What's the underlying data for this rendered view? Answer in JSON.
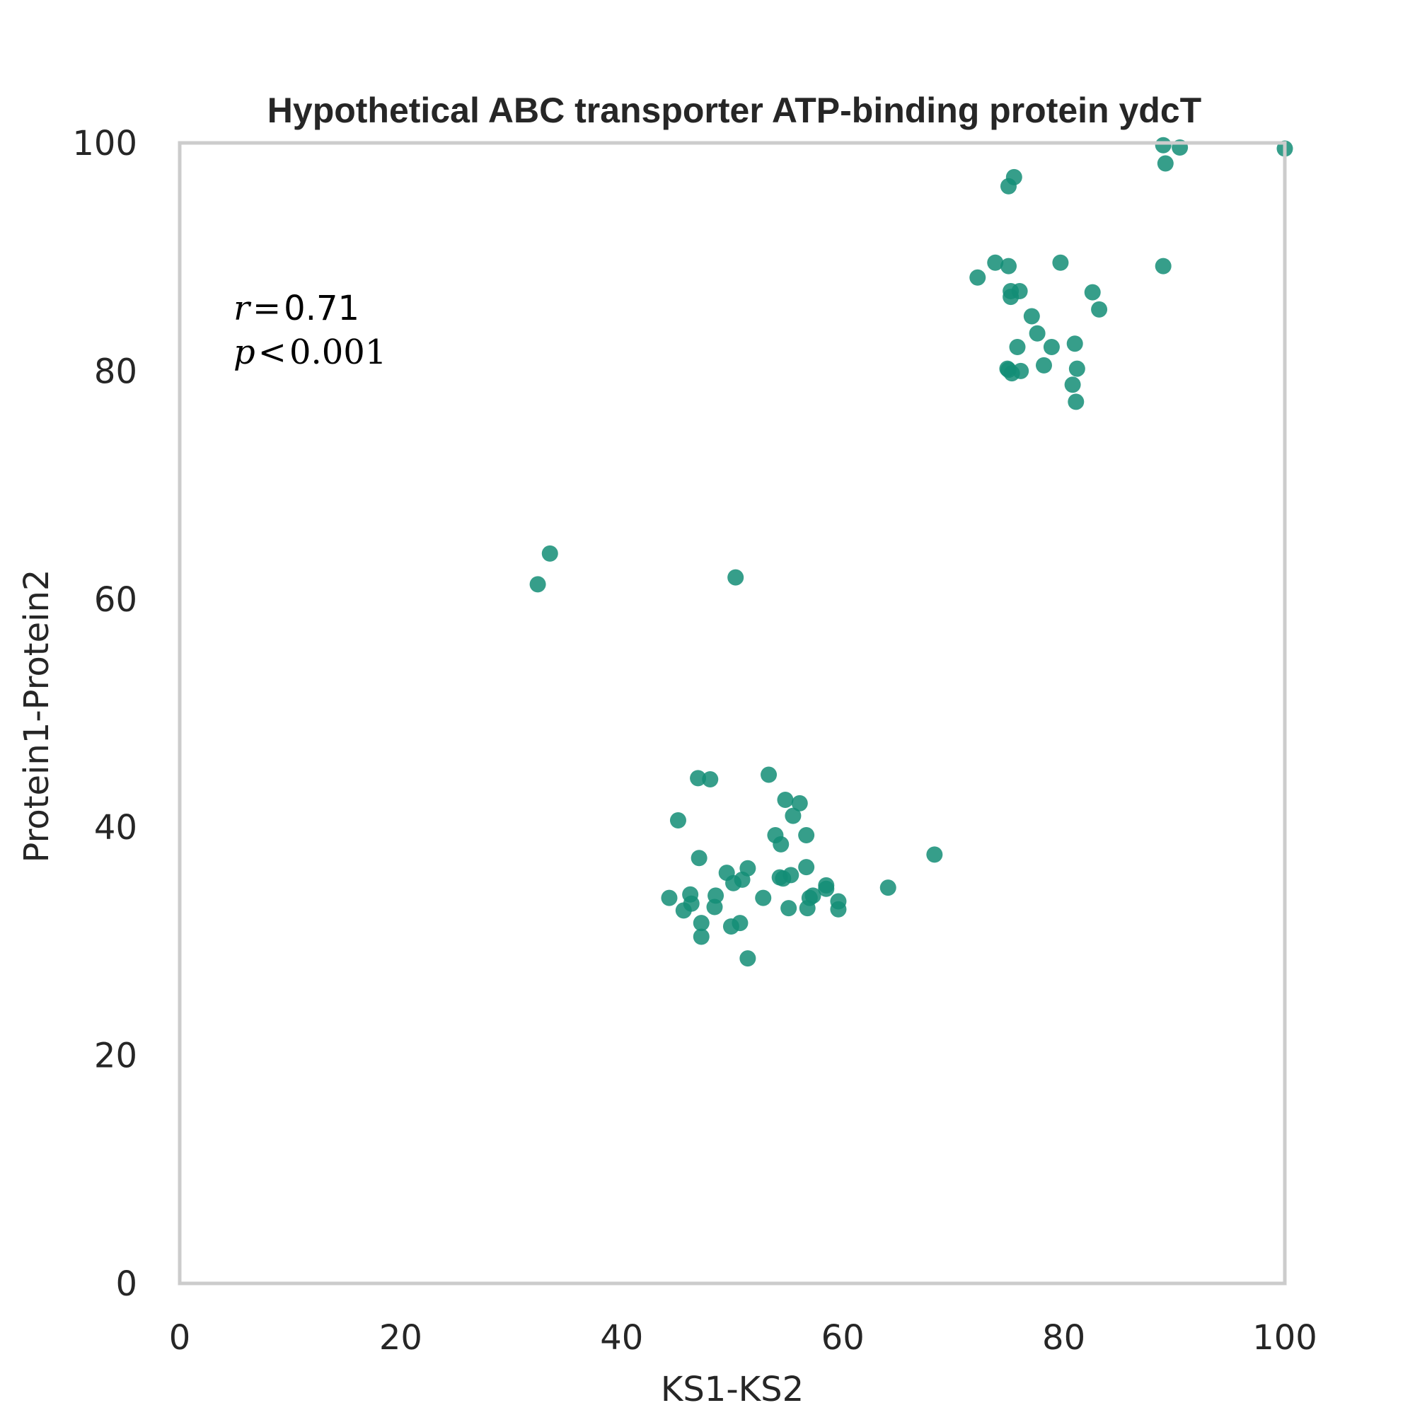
{
  "chart_data": {
    "type": "scatter",
    "title": "Hypothetical ABC transporter ATP-binding protein ydcT",
    "xlabel": "KS1-KS2",
    "ylabel": "Protein1-Protein2",
    "xlim": [
      0,
      100
    ],
    "ylim": [
      0,
      100
    ],
    "xticks": [
      "0",
      "20",
      "40",
      "60",
      "80",
      "100"
    ],
    "yticks": [
      "0",
      "20",
      "40",
      "60",
      "80",
      "100"
    ],
    "grid": false,
    "point_color": "#138d75",
    "annotation": {
      "r_symbol": "r",
      "r_eq": "=",
      "r_value": "0.71",
      "p_symbol": "p",
      "p_lt": "<",
      "p_value": "0.001"
    },
    "points": [
      [
        75.5,
        97.0
      ],
      [
        75.0,
        96.2
      ],
      [
        89.0,
        99.8
      ],
      [
        90.5,
        99.6
      ],
      [
        100.0,
        99.5
      ],
      [
        89.2,
        98.2
      ],
      [
        72.2,
        88.2
      ],
      [
        73.8,
        89.5
      ],
      [
        75.0,
        89.2
      ],
      [
        79.7,
        89.5
      ],
      [
        89.0,
        89.2
      ],
      [
        75.2,
        87.0
      ],
      [
        75.2,
        86.5
      ],
      [
        76.0,
        87.0
      ],
      [
        82.6,
        86.9
      ],
      [
        83.2,
        85.4
      ],
      [
        77.1,
        84.8
      ],
      [
        77.6,
        83.3
      ],
      [
        75.8,
        82.1
      ],
      [
        78.9,
        82.1
      ],
      [
        81.0,
        82.4
      ],
      [
        78.2,
        80.5
      ],
      [
        76.1,
        80.0
      ],
      [
        74.9,
        80.2
      ],
      [
        75.0,
        80.1
      ],
      [
        75.3,
        79.8
      ],
      [
        81.2,
        80.2
      ],
      [
        80.8,
        78.8
      ],
      [
        81.1,
        77.3
      ],
      [
        33.5,
        64.0
      ],
      [
        32.4,
        61.3
      ],
      [
        50.3,
        61.9
      ],
      [
        46.9,
        44.3
      ],
      [
        48.0,
        44.2
      ],
      [
        53.3,
        44.6
      ],
      [
        54.8,
        42.4
      ],
      [
        56.1,
        42.1
      ],
      [
        55.5,
        41.0
      ],
      [
        45.1,
        40.6
      ],
      [
        53.9,
        39.3
      ],
      [
        56.7,
        39.3
      ],
      [
        54.4,
        38.5
      ],
      [
        47.0,
        37.3
      ],
      [
        56.7,
        36.5
      ],
      [
        49.5,
        36.0
      ],
      [
        51.4,
        36.4
      ],
      [
        50.1,
        35.1
      ],
      [
        50.9,
        35.4
      ],
      [
        54.3,
        35.6
      ],
      [
        54.6,
        35.5
      ],
      [
        55.3,
        35.8
      ],
      [
        58.5,
        34.9
      ],
      [
        64.1,
        34.7
      ],
      [
        68.3,
        37.6
      ],
      [
        44.3,
        33.8
      ],
      [
        46.2,
        34.1
      ],
      [
        46.3,
        33.3
      ],
      [
        48.5,
        34.0
      ],
      [
        45.6,
        32.7
      ],
      [
        48.4,
        33.0
      ],
      [
        52.8,
        33.8
      ],
      [
        55.1,
        32.9
      ],
      [
        56.8,
        32.9
      ],
      [
        57.0,
        33.8
      ],
      [
        57.3,
        34.0
      ],
      [
        58.5,
        34.6
      ],
      [
        59.6,
        33.5
      ],
      [
        59.6,
        32.8
      ],
      [
        47.2,
        31.6
      ],
      [
        49.9,
        31.3
      ],
      [
        50.7,
        31.6
      ],
      [
        47.2,
        30.4
      ],
      [
        51.4,
        28.5
      ]
    ]
  }
}
